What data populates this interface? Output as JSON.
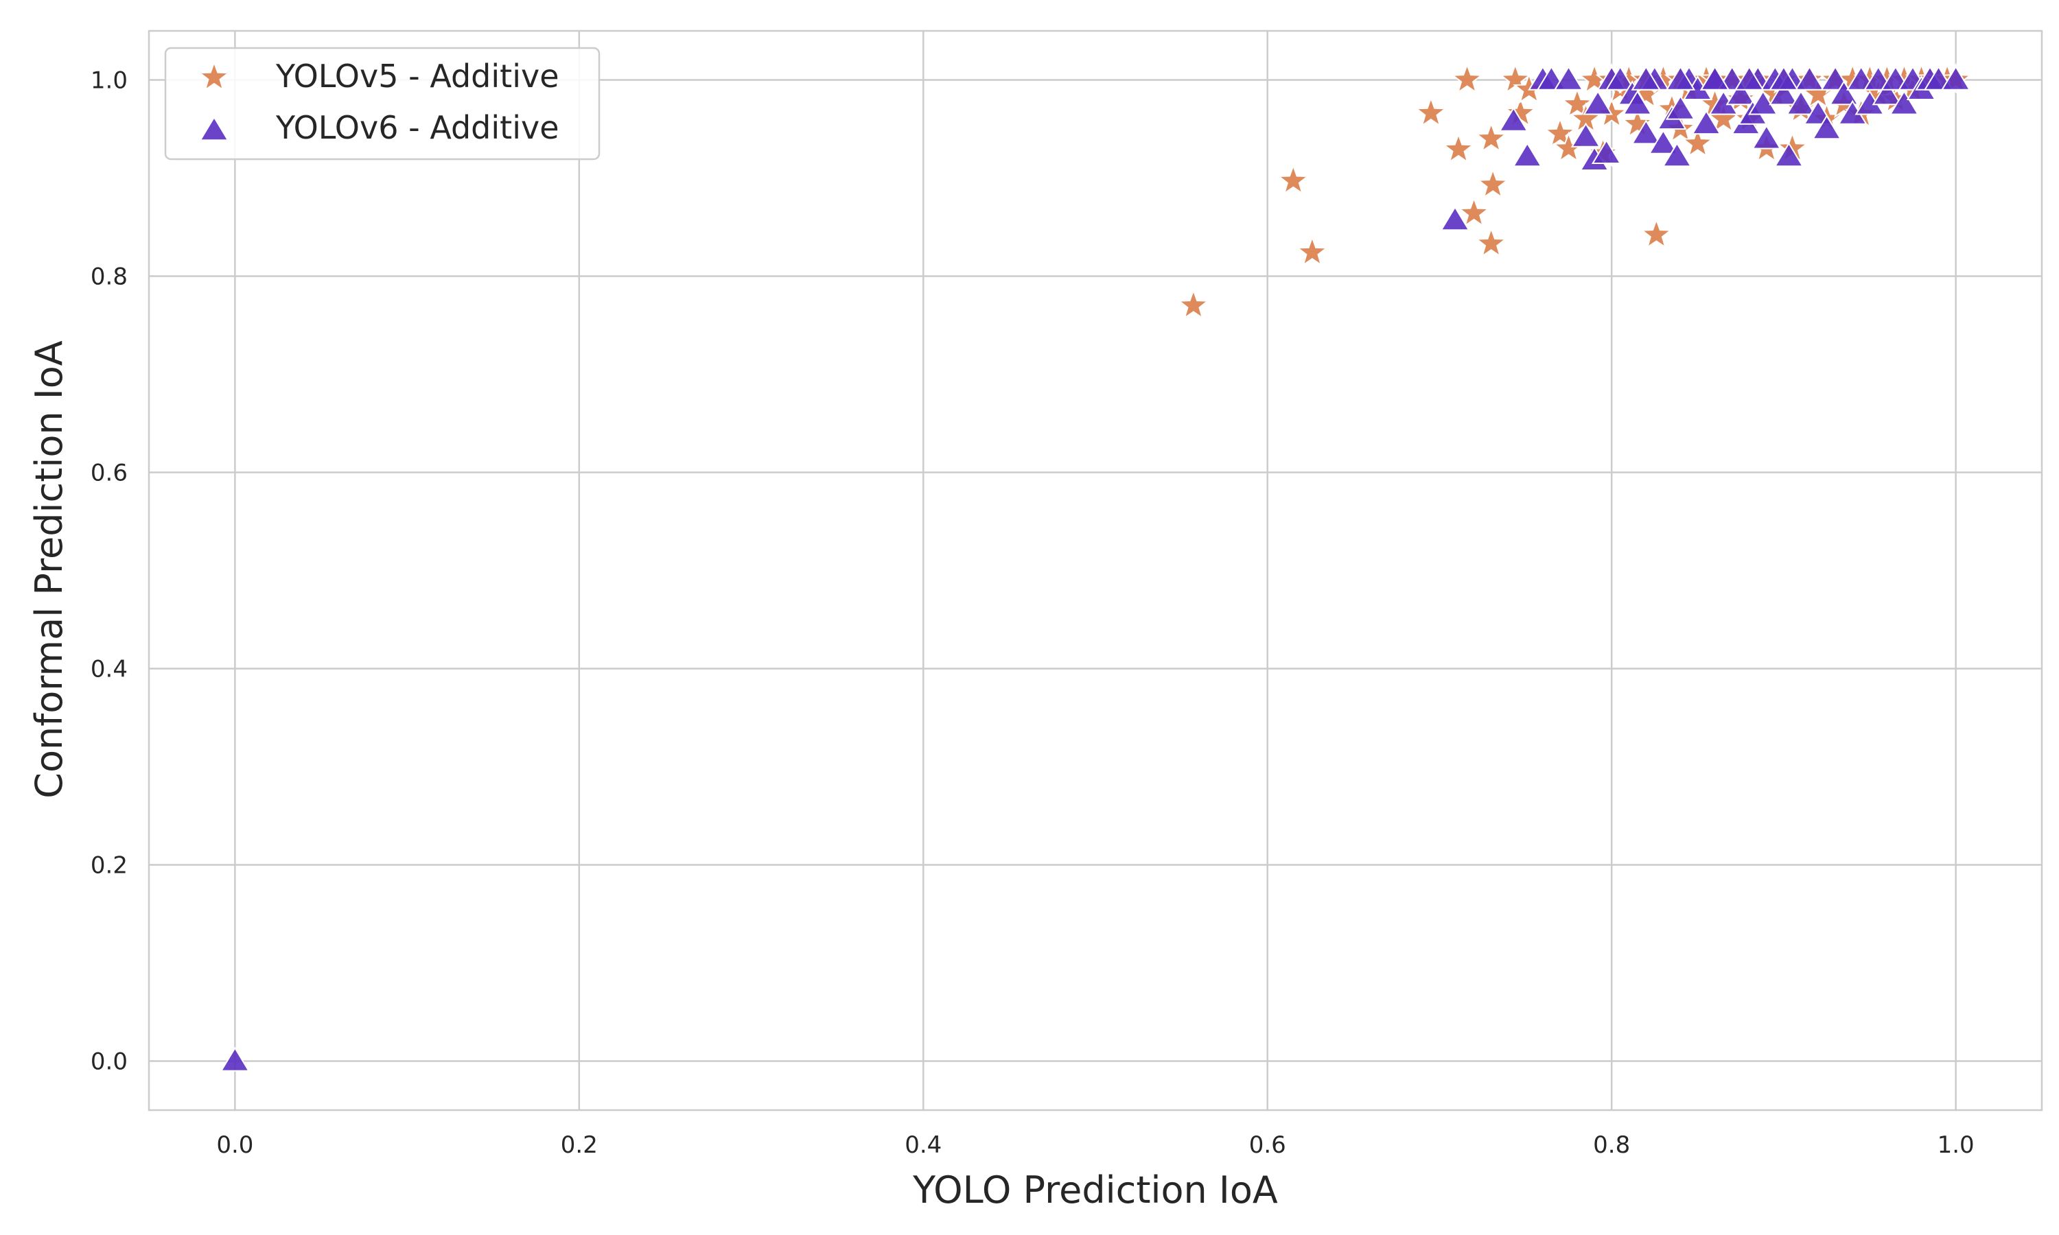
{
  "chart_data": {
    "type": "scatter",
    "title": "",
    "xlabel": "YOLO Prediction IoA",
    "ylabel": "Conformal Prediction IoA",
    "xlim": [
      -0.05,
      1.05
    ],
    "ylim": [
      -0.05,
      1.05
    ],
    "x_ticks": [
      0.0,
      0.2,
      0.4,
      0.6,
      0.8,
      1.0
    ],
    "y_ticks": [
      0.0,
      0.2,
      0.4,
      0.6,
      0.8,
      1.0
    ],
    "x_tick_labels": [
      "0.0",
      "0.2",
      "0.4",
      "0.6",
      "0.8",
      "1.0"
    ],
    "y_tick_labels": [
      "0.0",
      "0.2",
      "0.4",
      "0.6",
      "0.8",
      "1.0"
    ],
    "grid": true,
    "legend_position": "top-left",
    "series": [
      {
        "name": "YOLOv5 - Additive",
        "marker": "star",
        "color": "#dd8452",
        "points": [
          [
            0.557,
            0.77
          ],
          [
            0.615,
            0.897
          ],
          [
            0.626,
            0.824
          ],
          [
            0.695,
            0.966
          ],
          [
            0.711,
            0.929
          ],
          [
            0.716,
            1.0
          ],
          [
            0.72,
            0.864
          ],
          [
            0.73,
            0.94
          ],
          [
            0.731,
            0.893
          ],
          [
            0.73,
            0.833
          ],
          [
            0.744,
            1.0
          ],
          [
            0.747,
            0.966
          ],
          [
            0.752,
            0.99
          ],
          [
            0.77,
            0.945
          ],
          [
            0.775,
            0.93
          ],
          [
            0.78,
            0.975
          ],
          [
            0.785,
            0.96
          ],
          [
            0.79,
            1.0
          ],
          [
            0.795,
            0.925
          ],
          [
            0.8,
            0.965
          ],
          [
            0.805,
            0.99
          ],
          [
            0.81,
            1.0
          ],
          [
            0.815,
            0.955
          ],
          [
            0.82,
            0.985
          ],
          [
            0.826,
            0.842
          ],
          [
            0.83,
            1.0
          ],
          [
            0.835,
            0.97
          ],
          [
            0.84,
            0.95
          ],
          [
            0.845,
            0.99
          ],
          [
            0.85,
            0.935
          ],
          [
            0.855,
            1.0
          ],
          [
            0.86,
            0.975
          ],
          [
            0.865,
            0.96
          ],
          [
            0.87,
            1.0
          ],
          [
            0.875,
            0.98
          ],
          [
            0.88,
            0.96
          ],
          [
            0.885,
            1.0
          ],
          [
            0.89,
            0.93
          ],
          [
            0.895,
            0.985
          ],
          [
            0.9,
            1.0
          ],
          [
            0.905,
            0.93
          ],
          [
            0.91,
            0.97
          ],
          [
            0.915,
            1.0
          ],
          [
            0.92,
            0.985
          ],
          [
            0.925,
            0.96
          ],
          [
            0.93,
            1.0
          ],
          [
            0.935,
            0.975
          ],
          [
            0.94,
            1.0
          ],
          [
            0.945,
            0.965
          ],
          [
            0.95,
            1.0
          ],
          [
            0.955,
            0.985
          ],
          [
            0.96,
            1.0
          ],
          [
            0.965,
            0.98
          ],
          [
            0.97,
            1.0
          ],
          [
            0.975,
            0.99
          ],
          [
            0.98,
            1.0
          ],
          [
            0.985,
            1.0
          ],
          [
            0.99,
            1.0
          ],
          [
            0.995,
            1.0
          ],
          [
            1.0,
            1.0
          ],
          [
            0.8,
            1.0
          ],
          [
            0.82,
            1.0
          ],
          [
            0.84,
            1.0
          ],
          [
            0.86,
            1.0
          ],
          [
            0.88,
            1.0
          ]
        ]
      },
      {
        "name": "YOLOv6 - Additive",
        "marker": "triangle",
        "color": "#5a2fc2",
        "points": [
          [
            0.0,
            0.0
          ],
          [
            0.709,
            0.857
          ],
          [
            0.743,
            0.958
          ],
          [
            0.751,
            0.922
          ],
          [
            0.76,
            1.0
          ],
          [
            0.765,
            1.0
          ],
          [
            0.775,
            1.0
          ],
          [
            0.785,
            0.942
          ],
          [
            0.79,
            0.918
          ],
          [
            0.792,
            0.975
          ],
          [
            0.797,
            0.925
          ],
          [
            0.8,
            1.0
          ],
          [
            0.805,
            1.0
          ],
          [
            0.812,
            0.985
          ],
          [
            0.815,
            0.975
          ],
          [
            0.82,
            0.945
          ],
          [
            0.825,
            1.0
          ],
          [
            0.83,
            0.935
          ],
          [
            0.835,
            0.96
          ],
          [
            0.838,
            0.922
          ],
          [
            0.84,
            0.97
          ],
          [
            0.845,
            1.0
          ],
          [
            0.85,
            0.99
          ],
          [
            0.855,
            0.955
          ],
          [
            0.86,
            1.0
          ],
          [
            0.865,
            0.975
          ],
          [
            0.87,
            1.0
          ],
          [
            0.875,
            0.985
          ],
          [
            0.878,
            0.955
          ],
          [
            0.882,
            0.965
          ],
          [
            0.885,
            1.0
          ],
          [
            0.888,
            0.975
          ],
          [
            0.89,
            0.94
          ],
          [
            0.895,
            1.0
          ],
          [
            0.9,
            0.985
          ],
          [
            0.903,
            0.922
          ],
          [
            0.905,
            1.0
          ],
          [
            0.91,
            0.975
          ],
          [
            0.915,
            1.0
          ],
          [
            0.92,
            0.965
          ],
          [
            0.925,
            0.95
          ],
          [
            0.93,
            1.0
          ],
          [
            0.935,
            0.985
          ],
          [
            0.94,
            0.965
          ],
          [
            0.945,
            1.0
          ],
          [
            0.95,
            0.975
          ],
          [
            0.955,
            1.0
          ],
          [
            0.96,
            0.985
          ],
          [
            0.965,
            1.0
          ],
          [
            0.97,
            0.975
          ],
          [
            0.975,
            1.0
          ],
          [
            0.98,
            0.99
          ],
          [
            0.985,
            1.0
          ],
          [
            0.99,
            1.0
          ],
          [
            1.0,
            1.0
          ],
          [
            0.82,
            1.0
          ],
          [
            0.84,
            1.0
          ],
          [
            0.86,
            1.0
          ],
          [
            0.88,
            1.0
          ],
          [
            0.9,
            1.0
          ]
        ]
      }
    ]
  }
}
